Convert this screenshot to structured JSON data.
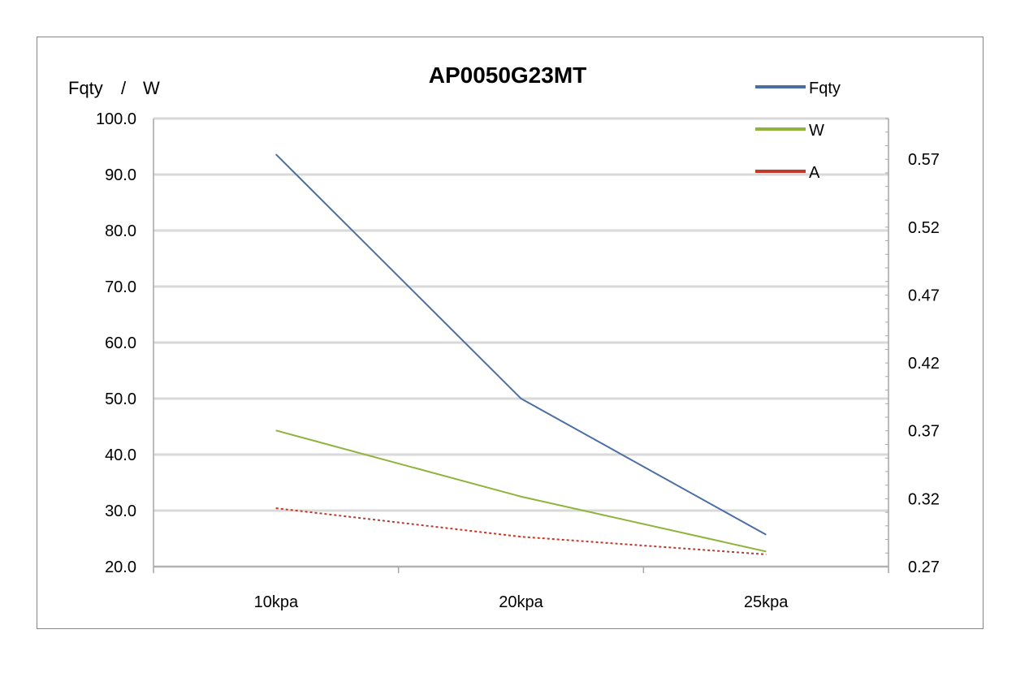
{
  "chart_data": {
    "type": "line",
    "title": "AP0050G23MT",
    "ylabel": "Fqty / W",
    "ylabel_parts": [
      "Fqty",
      "/",
      "W"
    ],
    "categories": [
      "10kpa",
      "20kpa",
      "25kpa"
    ],
    "ylim": [
      20,
      100
    ],
    "y_ticks": [
      "100.0",
      "90.0",
      "80.0",
      "70.0",
      "60.0",
      "50.0",
      "40.0",
      "30.0",
      "20.0"
    ],
    "y2lim": [
      0.27,
      0.6
    ],
    "y2_ticks": [
      "0.57",
      "0.52",
      "0.47",
      "0.42",
      "0.37",
      "0.32",
      "0.27"
    ],
    "grid": true,
    "legend_position": "top-right",
    "series": [
      {
        "name": "Fqty",
        "axis": "left",
        "values": [
          93.6,
          50.0,
          25.7
        ],
        "color": "#4a6fa5",
        "style": "solid"
      },
      {
        "name": "W",
        "axis": "left",
        "values": [
          44.3,
          32.5,
          22.7
        ],
        "color": "#8fb43c",
        "style": "solid"
      },
      {
        "name": "A",
        "axis": "right",
        "values": [
          0.313,
          0.292,
          0.279
        ],
        "color": "#c0392b",
        "style": "dashed"
      }
    ]
  }
}
